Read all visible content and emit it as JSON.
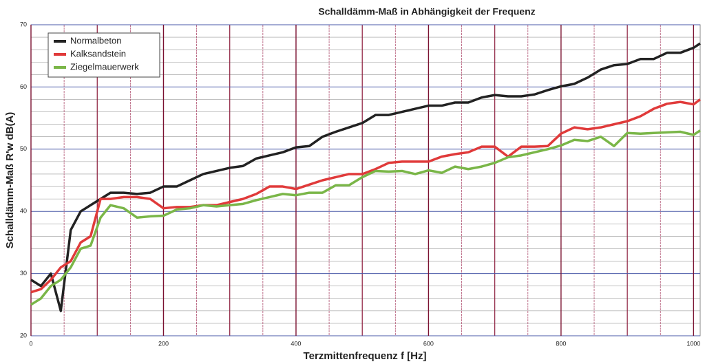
{
  "chart_data": {
    "type": "line",
    "title": "Schalldämm-Maß in Abhängigkeit der Frequenz",
    "x_label": "Terzmittenfrequenz f [Hz]",
    "y_label": "Schalldämm-Maß R'w dB(A)",
    "x": [
      0,
      15,
      30,
      45,
      60,
      75,
      90,
      105,
      120,
      140,
      160,
      180,
      200,
      220,
      240,
      260,
      280,
      300,
      320,
      340,
      360,
      380,
      400,
      420,
      440,
      460,
      480,
      500,
      520,
      540,
      560,
      580,
      600,
      620,
      640,
      660,
      680,
      700,
      720,
      740,
      760,
      780,
      800,
      820,
      840,
      860,
      880,
      900,
      920,
      940,
      960,
      980,
      1000,
      1010
    ],
    "series": [
      {
        "name": "Normalbeton",
        "color": "#222222",
        "values": [
          29,
          28,
          30,
          24,
          37,
          40,
          41,
          42,
          43,
          43,
          42.8,
          43,
          44,
          44,
          45,
          46,
          46.5,
          47,
          47.3,
          48.5,
          49,
          49.5,
          50.3,
          50.5,
          52,
          52.8,
          53.5,
          54.2,
          55.5,
          55.5,
          56,
          56.5,
          57,
          57,
          57.5,
          57.5,
          58.3,
          58.7,
          58.5,
          58.5,
          58.8,
          59.5,
          60.1,
          60.5,
          61.5,
          62.8,
          63.5,
          63.7,
          64.5,
          64.5,
          65.5,
          65.5,
          66.3,
          67
        ]
      },
      {
        "name": "Kalksandstein",
        "color": "#e03a3a",
        "values": [
          27,
          27.5,
          29,
          31,
          32,
          35,
          36,
          42,
          42,
          42.3,
          42.3,
          42,
          40.5,
          40.7,
          40.7,
          41,
          41,
          41.5,
          42,
          42.8,
          44,
          44,
          43.6,
          44.3,
          45,
          45.5,
          46,
          46,
          46.8,
          47.8,
          48,
          48,
          48,
          48.8,
          49.2,
          49.5,
          50.4,
          50.4,
          48.8,
          50.4,
          50.4,
          50.5,
          52.5,
          53.5,
          53.2,
          53.5,
          54,
          54.5,
          55.3,
          56.5,
          57.3,
          57.6,
          57.2,
          58
        ]
      },
      {
        "name": "Ziegelmauerwerk",
        "color": "#7ab648",
        "values": [
          25,
          26,
          28,
          29,
          31,
          34,
          34.5,
          39,
          41,
          40.5,
          39,
          39.2,
          39.3,
          40.3,
          40.5,
          41,
          40.8,
          41,
          41.2,
          41.8,
          42.3,
          42.8,
          42.6,
          43,
          43,
          44.2,
          44.2,
          45.5,
          46.5,
          46.4,
          46.5,
          46,
          46.6,
          46.2,
          47.2,
          46.8,
          47.2,
          47.8,
          48.7,
          49,
          49.5,
          50,
          50.6,
          51.5,
          51.3,
          52,
          50.5,
          52.6,
          52.5,
          52.6,
          52.7,
          52.8,
          52.3,
          53
        ]
      }
    ],
    "xlim": [
      0,
      1010
    ],
    "ylim": [
      20,
      70
    ],
    "xticks": [
      0,
      200,
      400,
      600,
      800,
      1000
    ],
    "yticks": [
      20,
      30,
      40,
      50,
      60,
      70
    ],
    "grid": true,
    "legend": "upper left"
  }
}
